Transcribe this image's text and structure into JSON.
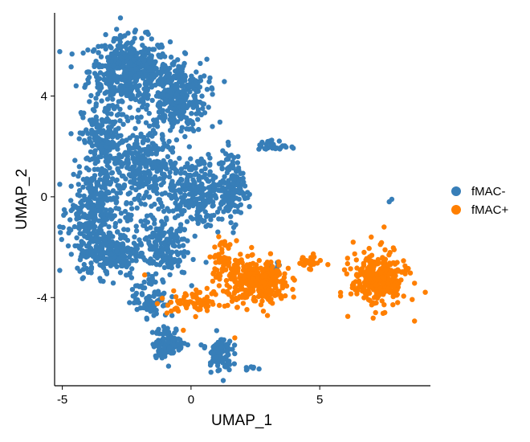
{
  "chart_data": {
    "type": "scatter",
    "xlabel": "UMAP_1",
    "ylabel": "UMAP_2",
    "xlim": [
      -5.3,
      9.3
    ],
    "ylim": [
      -7.5,
      7.3
    ],
    "xticks": [
      -5,
      0,
      5
    ],
    "yticks": [
      -4,
      0,
      4
    ],
    "grid": false,
    "legend_position": "right",
    "series": [
      {
        "name": "fMAC-",
        "color": "#377EB8",
        "clusters": [
          {
            "center": [
              -2.4,
              5.0
            ],
            "spread": [
              1.3,
              1.1
            ],
            "count": 480
          },
          {
            "center": [
              -0.6,
              4.0
            ],
            "spread": [
              1.0,
              1.2
            ],
            "count": 330
          },
          {
            "center": [
              -3.4,
              2.2
            ],
            "spread": [
              0.7,
              1.3
            ],
            "count": 200
          },
          {
            "center": [
              -1.8,
              1.0
            ],
            "spread": [
              1.0,
              1.5
            ],
            "count": 300
          },
          {
            "center": [
              -3.8,
              -0.5
            ],
            "spread": [
              0.8,
              1.3
            ],
            "count": 260
          },
          {
            "center": [
              -3.2,
              -2.2
            ],
            "spread": [
              1.0,
              0.8
            ],
            "count": 240
          },
          {
            "center": [
              0.3,
              0.2
            ],
            "spread": [
              1.2,
              1.2
            ],
            "count": 260
          },
          {
            "center": [
              1.6,
              0.4
            ],
            "spread": [
              0.4,
              1.2
            ],
            "count": 110
          },
          {
            "center": [
              -1.2,
              -2.0
            ],
            "spread": [
              0.9,
              1.0
            ],
            "count": 170
          },
          {
            "center": [
              -1.6,
              -4.0
            ],
            "spread": [
              0.6,
              0.7
            ],
            "count": 80
          },
          {
            "center": [
              -0.9,
              -5.8
            ],
            "spread": [
              0.5,
              0.5
            ],
            "count": 110
          },
          {
            "center": [
              1.1,
              -6.2
            ],
            "spread": [
              0.4,
              0.6
            ],
            "count": 90
          },
          {
            "center": [
              3.2,
              2.0
            ],
            "spread": [
              0.5,
              0.2
            ],
            "count": 30
          },
          {
            "center": [
              2.4,
              -6.8
            ],
            "spread": [
              0.3,
              0.1
            ],
            "count": 8
          },
          {
            "center": [
              3.2,
              -2.8
            ],
            "spread": [
              0.3,
              0.3
            ],
            "count": 10
          }
        ],
        "extra_points": [
          [
            7.7,
            -0.2
          ],
          [
            7.8,
            -0.1
          ],
          [
            1.3,
            0.8
          ],
          [
            0.4,
            1.5
          ]
        ]
      },
      {
        "name": "fMAC+",
        "color": "#FF7F00",
        "clusters": [
          {
            "center": [
              2.6,
              -3.4
            ],
            "spread": [
              1.0,
              0.7
            ],
            "count": 330
          },
          {
            "center": [
              1.2,
              -2.5
            ],
            "spread": [
              0.4,
              0.6
            ],
            "count": 60
          },
          {
            "center": [
              0.2,
              -4.2
            ],
            "spread": [
              0.9,
              0.4
            ],
            "count": 70
          },
          {
            "center": [
              4.5,
              -2.6
            ],
            "spread": [
              0.5,
              0.2
            ],
            "count": 30
          },
          {
            "center": [
              7.3,
              -3.3
            ],
            "spread": [
              0.9,
              0.9
            ],
            "count": 300
          }
        ],
        "extra_points": [
          [
            7.5,
            -1.2
          ],
          [
            7.0,
            -1.6
          ],
          [
            6.3,
            -1.8
          ],
          [
            1.7,
            -5.6
          ],
          [
            -0.3,
            -5.3
          ],
          [
            -1.8,
            -3.1
          ],
          [
            -0.9,
            -4.3
          ]
        ]
      }
    ]
  }
}
